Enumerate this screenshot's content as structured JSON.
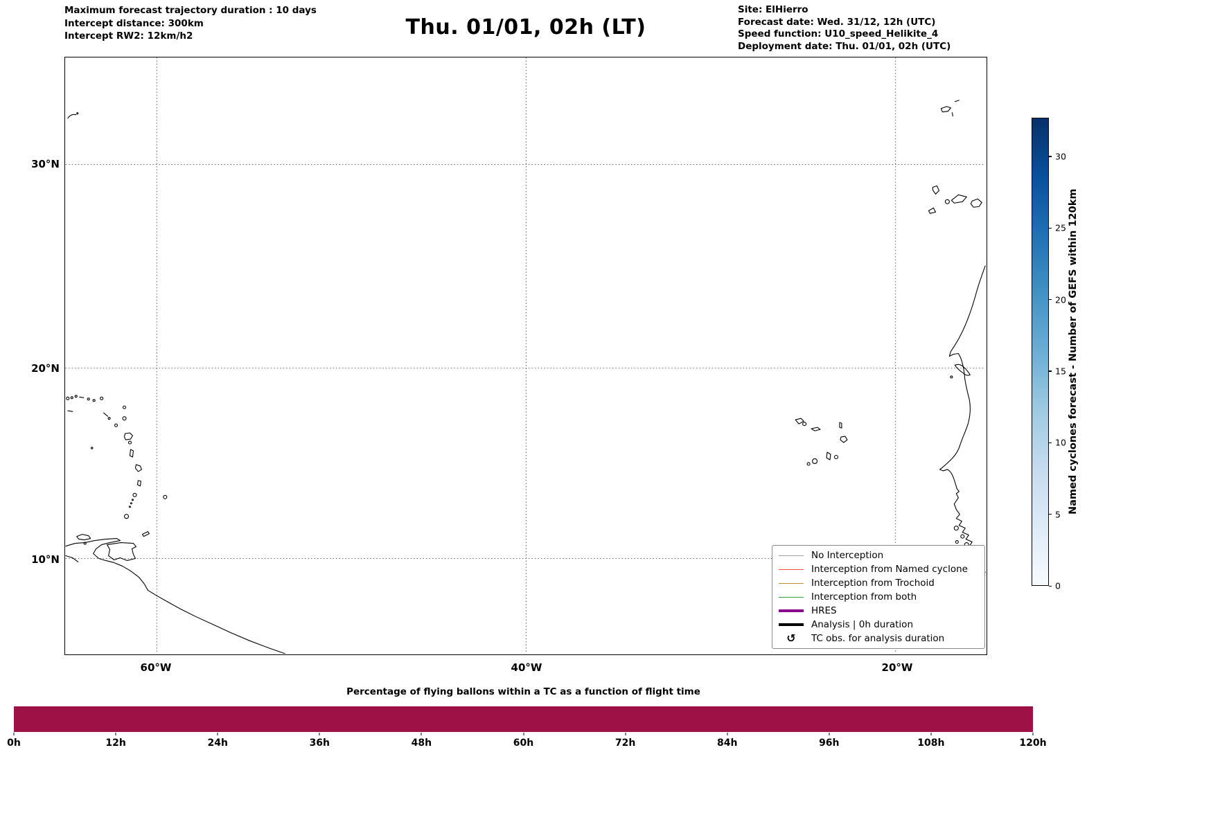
{
  "header": {
    "left_lines": [
      "Maximum forecast trajectory duration : 10 days",
      "Intercept distance: 300km",
      "Intercept RW2: 12km/h2"
    ],
    "title": "Thu. 01/01, 02h (LT)",
    "right_lines": [
      "Site: ElHierro",
      "Forecast date: Wed. 31/12, 12h (UTC)",
      "Speed function: U10_speed_Helikite_4",
      "Deployment date: Thu. 01/01, 02h (UTC)"
    ]
  },
  "map": {
    "lat_ticks": [
      "30°N",
      "20°N",
      "10°N"
    ],
    "lon_ticks": [
      "60°W",
      "40°W",
      "20°W"
    ]
  },
  "legend": {
    "items": [
      {
        "label": "No Interception",
        "color": "#a0a0a0",
        "thick": false
      },
      {
        "label": "Interception from Named cyclone",
        "color": "#ff4d2e",
        "thick": false
      },
      {
        "label": "Interception from Trochoid",
        "color": "#b8962e",
        "thick": false
      },
      {
        "label": "Interception from both",
        "color": "#2e9e3c",
        "thick": false
      },
      {
        "label": "HRES",
        "color": "#8b008b",
        "thick": true
      },
      {
        "label": "Analysis | 0h duration",
        "color": "#000000",
        "thick": true
      },
      {
        "label": "TC obs. for analysis duration",
        "icon": "↺",
        "icon_name": "tc-obs-icon"
      }
    ]
  },
  "colorbar": {
    "label": "Named cyclones forecast - Number of GEFS within 120km",
    "ticks": [
      0,
      5,
      10,
      15,
      20,
      25,
      30
    ],
    "vmax": 32.7,
    "gradient_bottom_to_top": [
      "#f7fbff",
      "#deebf7",
      "#c6dbef",
      "#9ecae1",
      "#6baed6",
      "#4292c6",
      "#2171b5",
      "#08519c",
      "#08306b"
    ]
  },
  "bottom": {
    "title": "Percentage of flying ballons within a TC as a function of flight time",
    "ticks": [
      "0h",
      "12h",
      "24h",
      "36h",
      "48h",
      "60h",
      "72h",
      "84h",
      "96h",
      "108h",
      "120h"
    ],
    "bar_color": "#9d1146"
  },
  "chart_data": {
    "type": "heatmap",
    "title": "Percentage of flying ballons within a TC as a function of flight time",
    "x_ticks": [
      "0h",
      "12h",
      "24h",
      "36h",
      "48h",
      "60h",
      "72h",
      "84h",
      "96h",
      "108h",
      "120h"
    ],
    "x_range_hours": [
      0,
      120
    ],
    "strip": "single-row strip of constant color across the whole 0h–120h range (no numeric labels shown)",
    "strip_color": "#9d1146",
    "colorbar": {
      "label": "Named cyclones forecast - Number of GEFS within 120km",
      "ticks": [
        0,
        5,
        10,
        15,
        20,
        25,
        30
      ],
      "range": [
        0,
        32.7
      ]
    }
  }
}
